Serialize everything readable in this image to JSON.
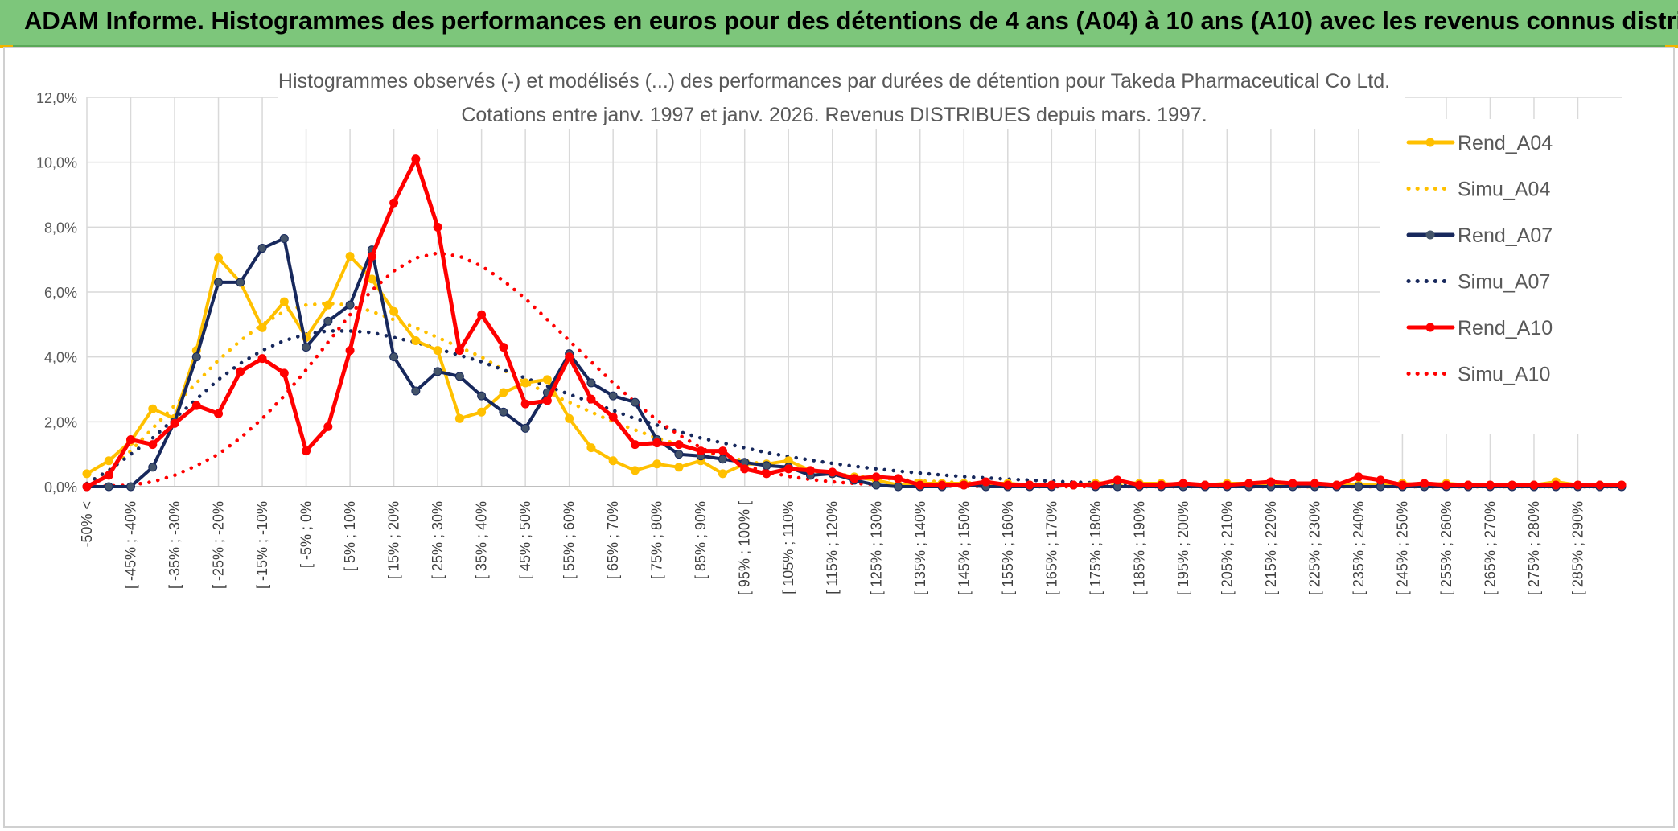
{
  "banner": {
    "title": "ADAM Informe. Histogrammes des performances en euros pour des détentions de 4 ans (A04) à 10 ans (A10) avec les revenus connus distribués"
  },
  "chart_data": {
    "type": "line",
    "title_line1": "Histogrammes observés (-) et modélisés (...) des performances par durées de détention pour Takeda Pharmaceutical Co Ltd.",
    "title_line2": "Cotations entre janv. 1997 et janv. 2026. Revenus DISTRIBUES depuis mars. 1997.",
    "xlabel": "",
    "ylabel": "",
    "ylim": [
      0,
      12
    ],
    "yticks": [
      0,
      2,
      4,
      6,
      8,
      10,
      12
    ],
    "ytick_labels": [
      "0,0%",
      "2,0%",
      "4,0%",
      "6,0%",
      "8,0%",
      "10,0%",
      "12,0%"
    ],
    "x_tick_labels": [
      "-50% <",
      "[ -45% ; -40%",
      "[ -35% ; -30%",
      "[ -25% ; -20%",
      "[ -15% ; -10%",
      "[ -5% ; 0%",
      "[ 5% ; 10%",
      "[ 15% ; 20%",
      "[ 25% ; 30%",
      "[ 35% ; 40%",
      "[ 45% ; 50%",
      "[ 55% ; 60%",
      "[ 65% ; 70%",
      "[ 75% ; 80%",
      "[ 85% ; 90%",
      "[ 95% ; 100% [",
      "[ 105% ; 110%",
      "[ 115% ; 120%",
      "[ 125% ; 130%",
      "[ 135% ; 140%",
      "[ 145% ; 150%",
      "[ 155% ; 160%",
      "[ 165% ; 170%",
      "[ 175% ; 180%",
      "[ 185% ; 190%",
      "[ 195% ; 200%",
      "[ 205% ; 210%",
      "[ 215% ; 220%",
      "[ 225% ; 230%",
      "[ 235% ; 240%",
      "[ 245% ; 250%",
      "[ 255% ; 260%",
      "[ 265% ; 270%",
      "[ 275% ; 280%",
      "[ 285% ; 290%"
    ],
    "legend_position": "right",
    "series": [
      {
        "name": "Rend_A04",
        "color": "#ffc000",
        "style": "solid",
        "markers": true,
        "values": [
          0.4,
          0.8,
          1.4,
          2.4,
          2.1,
          4.2,
          7.05,
          6.3,
          4.9,
          5.7,
          4.6,
          5.6,
          7.1,
          6.4,
          5.4,
          4.5,
          4.2,
          2.1,
          2.3,
          2.9,
          3.2,
          3.3,
          2.1,
          1.2,
          0.8,
          0.5,
          0.7,
          0.6,
          0.8,
          0.4,
          0.7,
          0.7,
          0.8,
          0.5,
          0.4,
          0.3,
          0.2,
          0.05,
          0.1,
          0.1,
          0.1,
          0.1,
          0.1,
          0.05,
          0.05,
          0.05,
          0.1,
          0.15,
          0.1,
          0.1,
          0.05,
          0.05,
          0.1,
          0.1,
          0.05,
          0.05,
          0.05,
          0.05,
          0.05,
          0.05,
          0.1,
          0.05,
          0.1,
          0.05,
          0.05,
          0.05,
          0.05,
          0.15,
          0.05,
          0.05,
          0.05
        ]
      },
      {
        "name": "Simu_A04",
        "color": "#ffc000",
        "style": "dotted",
        "markers": false,
        "values": [
          0.1,
          0.5,
          1.1,
          1.8,
          2.5,
          3.2,
          3.9,
          4.5,
          5.0,
          5.4,
          5.6,
          5.65,
          5.6,
          5.4,
          5.15,
          4.9,
          4.6,
          4.3,
          4.0,
          3.6,
          3.2,
          2.9,
          2.6,
          2.3,
          2.0,
          1.75,
          1.5,
          1.3,
          1.1,
          0.95,
          0.8,
          0.68,
          0.57,
          0.48,
          0.4,
          0.33,
          0.27,
          0.22,
          0.18,
          0.15,
          0.12,
          0.1,
          0.08,
          0.06,
          0.05,
          0.04,
          0.03,
          0.025,
          0.02,
          0.015,
          0.01,
          0.01,
          0.01,
          0.005,
          0.005,
          0,
          0,
          0,
          0,
          0,
          0,
          0,
          0,
          0,
          0,
          0,
          0,
          0,
          0,
          0,
          0
        ]
      },
      {
        "name": "Rend_A07",
        "color": "#17285c",
        "style": "solid",
        "markers": true,
        "values": [
          0,
          0,
          0,
          0.6,
          2.0,
          4.0,
          6.3,
          6.3,
          7.35,
          7.65,
          4.3,
          5.1,
          5.6,
          7.3,
          4.0,
          2.95,
          3.55,
          3.4,
          2.8,
          2.3,
          1.8,
          2.9,
          4.1,
          3.2,
          2.8,
          2.6,
          1.45,
          1.0,
          0.95,
          0.85,
          0.75,
          0.65,
          0.6,
          0.35,
          0.4,
          0.2,
          0.05,
          0,
          0,
          0,
          0.05,
          0,
          0,
          0,
          0,
          0.05,
          0,
          0,
          0,
          0,
          0,
          0,
          0,
          0,
          0,
          0,
          0,
          0,
          0,
          0,
          0,
          0,
          0,
          0,
          0,
          0,
          0,
          0,
          0,
          0,
          0
        ]
      },
      {
        "name": "Simu_A07",
        "color": "#17285c",
        "style": "dotted",
        "markers": false,
        "values": [
          0.1,
          0.5,
          1.0,
          1.5,
          2.1,
          2.7,
          3.3,
          3.8,
          4.2,
          4.5,
          4.7,
          4.8,
          4.8,
          4.75,
          4.6,
          4.45,
          4.25,
          4.05,
          3.85,
          3.6,
          3.35,
          3.1,
          2.85,
          2.6,
          2.35,
          2.1,
          1.9,
          1.7,
          1.5,
          1.35,
          1.2,
          1.05,
          0.93,
          0.82,
          0.72,
          0.63,
          0.55,
          0.48,
          0.42,
          0.36,
          0.31,
          0.27,
          0.23,
          0.2,
          0.17,
          0.14,
          0.12,
          0.1,
          0.085,
          0.07,
          0.06,
          0.05,
          0.04,
          0.035,
          0.03,
          0.025,
          0.02,
          0.015,
          0.012,
          0.01,
          0.008,
          0.006,
          0.005,
          0.004,
          0.003,
          0.002,
          0.002,
          0.001,
          0.001,
          0,
          0
        ]
      },
      {
        "name": "Rend_A10",
        "color": "#ff0000",
        "style": "solid",
        "markers": true,
        "values": [
          0,
          0.35,
          1.45,
          1.3,
          1.95,
          2.5,
          2.25,
          3.55,
          3.95,
          3.5,
          1.1,
          1.85,
          4.2,
          7.1,
          8.75,
          10.1,
          8.0,
          4.2,
          5.3,
          4.3,
          2.55,
          2.65,
          4.0,
          2.7,
          2.15,
          1.3,
          1.35,
          1.3,
          1.1,
          1.1,
          0.55,
          0.4,
          0.55,
          0.5,
          0.45,
          0.25,
          0.3,
          0.25,
          0.05,
          0.05,
          0.05,
          0.15,
          0.05,
          0.05,
          0.05,
          0.05,
          0.05,
          0.2,
          0.05,
          0.05,
          0.1,
          0.05,
          0.05,
          0.1,
          0.15,
          0.1,
          0.1,
          0.05,
          0.3,
          0.2,
          0.05,
          0.1,
          0.05,
          0.05,
          0.05,
          0.05,
          0.05,
          0.05,
          0.05,
          0.05,
          0.05
        ]
      },
      {
        "name": "Simu_A10",
        "color": "#ff0000",
        "style": "dotted",
        "markers": false,
        "values": [
          0,
          0.02,
          0.05,
          0.15,
          0.35,
          0.65,
          1.0,
          1.5,
          2.1,
          2.8,
          3.6,
          4.45,
          5.3,
          6.05,
          6.65,
          7.05,
          7.2,
          7.1,
          6.8,
          6.35,
          5.8,
          5.15,
          4.5,
          3.85,
          3.2,
          2.6,
          2.05,
          1.6,
          1.2,
          0.9,
          0.65,
          0.46,
          0.32,
          0.22,
          0.15,
          0.1,
          0.07,
          0.05,
          0.03,
          0.02,
          0.015,
          0.01,
          0.005,
          0,
          0,
          0,
          0,
          0,
          0,
          0,
          0,
          0,
          0,
          0,
          0,
          0,
          0,
          0,
          0,
          0,
          0,
          0,
          0,
          0,
          0,
          0,
          0,
          0,
          0,
          0,
          0
        ]
      }
    ]
  }
}
